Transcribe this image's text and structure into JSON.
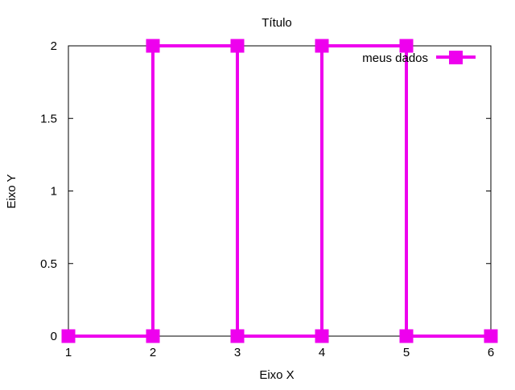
{
  "chart_data": {
    "type": "line",
    "title": "Título",
    "xlabel": "Eixo X",
    "ylabel": "Eixo Y",
    "xlim": [
      1,
      6
    ],
    "ylim": [
      0,
      2
    ],
    "xticks": [
      1,
      2,
      3,
      4,
      5,
      6
    ],
    "yticks": [
      0,
      0.5,
      1,
      1.5,
      2
    ],
    "xtick_labels": [
      "1",
      "2",
      "3",
      "4",
      "5",
      "6"
    ],
    "ytick_labels": [
      "0",
      "0.5",
      "1",
      "1.5",
      "2"
    ],
    "grid": false,
    "legend_position": "top-right",
    "series": [
      {
        "name": "meus dados",
        "color": "#ee00ee",
        "marker": "filled-square",
        "x": [
          1,
          2,
          2,
          3,
          3,
          4,
          4,
          5,
          5,
          6
        ],
        "y": [
          0,
          0,
          2,
          2,
          0,
          0,
          2,
          2,
          0,
          0
        ]
      }
    ]
  }
}
